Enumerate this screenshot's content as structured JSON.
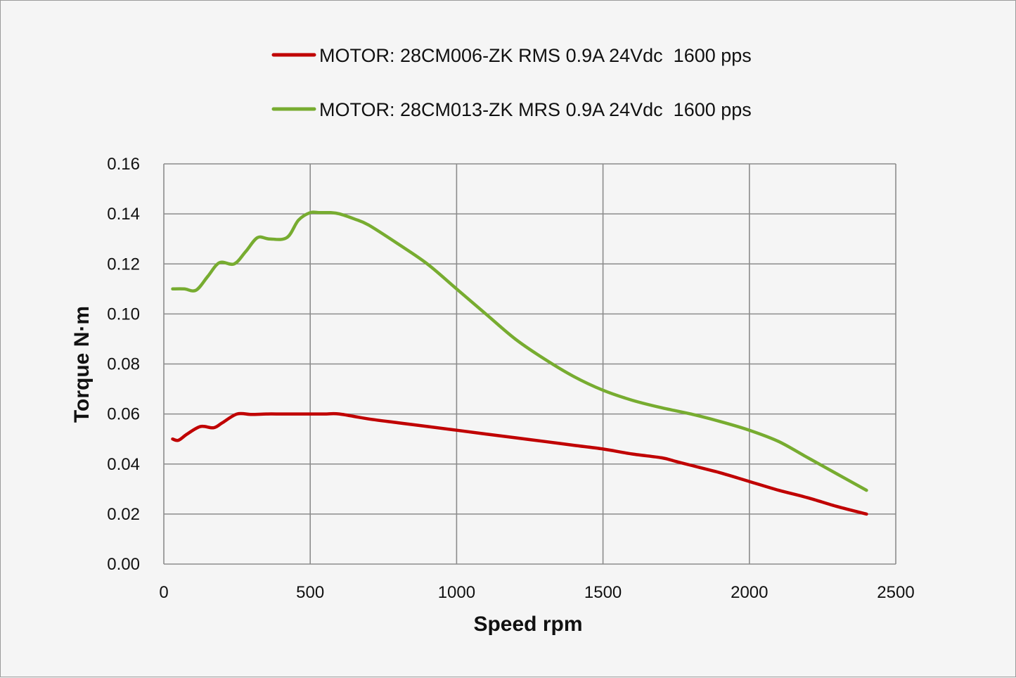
{
  "chart_data": {
    "type": "line",
    "title": "",
    "xlabel": "Speed rpm",
    "ylabel": "Torque N·m",
    "xlim": [
      0,
      2500
    ],
    "ylim": [
      0,
      0.16
    ],
    "x_ticks": [
      0,
      500,
      1000,
      1500,
      2000,
      2500
    ],
    "x_tick_labels": [
      "0",
      "500",
      "1000",
      "1500",
      "2000",
      "2500"
    ],
    "y_ticks": [
      0,
      0.02,
      0.04,
      0.06,
      0.08,
      0.1,
      0.12,
      0.14,
      0.16
    ],
    "y_tick_labels": [
      "0.00",
      "0.02",
      "0.04",
      "0.06",
      "0.08",
      "0.10",
      "0.12",
      "0.14",
      "0.16"
    ],
    "grid": true,
    "legend_position": "top-center",
    "series": [
      {
        "name": "MOTOR: 28CM006-ZK RMS 0.9A 24Vdc  1600 pps",
        "color": "#c00000",
        "x": [
          30,
          50,
          80,
          125,
          170,
          200,
          250,
          300,
          350,
          400,
          450,
          500,
          550,
          600,
          700,
          800,
          900,
          1000,
          1100,
          1200,
          1300,
          1400,
          1500,
          1600,
          1700,
          1750,
          1800,
          1900,
          2000,
          2100,
          2200,
          2300,
          2400
        ],
        "values": [
          0.05,
          0.0495,
          0.052,
          0.055,
          0.0545,
          0.0565,
          0.06,
          0.0598,
          0.06,
          0.06,
          0.06,
          0.06,
          0.06,
          0.06,
          0.058,
          0.0565,
          0.055,
          0.0535,
          0.052,
          0.0505,
          0.049,
          0.0475,
          0.046,
          0.044,
          0.0425,
          0.041,
          0.0395,
          0.0365,
          0.033,
          0.0295,
          0.0265,
          0.023,
          0.02
        ]
      },
      {
        "name": "MOTOR: 28CM013-ZK MRS 0.9A 24Vdc  1600 pps",
        "color": "#77ac30",
        "x": [
          30,
          70,
          110,
          150,
          190,
          240,
          280,
          320,
          360,
          420,
          460,
          500,
          530,
          570,
          600,
          650,
          700,
          800,
          900,
          1000,
          1100,
          1200,
          1300,
          1400,
          1500,
          1600,
          1700,
          1800,
          1900,
          2000,
          2100,
          2200,
          2300,
          2400
        ],
        "values": [
          0.11,
          0.11,
          0.1095,
          0.115,
          0.1205,
          0.12,
          0.125,
          0.1305,
          0.13,
          0.1305,
          0.1375,
          0.1405,
          0.1405,
          0.1405,
          0.14,
          0.138,
          0.1355,
          0.128,
          0.12,
          0.11,
          0.1,
          0.09,
          0.082,
          0.075,
          0.0695,
          0.0655,
          0.0625,
          0.06,
          0.057,
          0.0535,
          0.049,
          0.0425,
          0.036,
          0.0295
        ]
      }
    ]
  }
}
